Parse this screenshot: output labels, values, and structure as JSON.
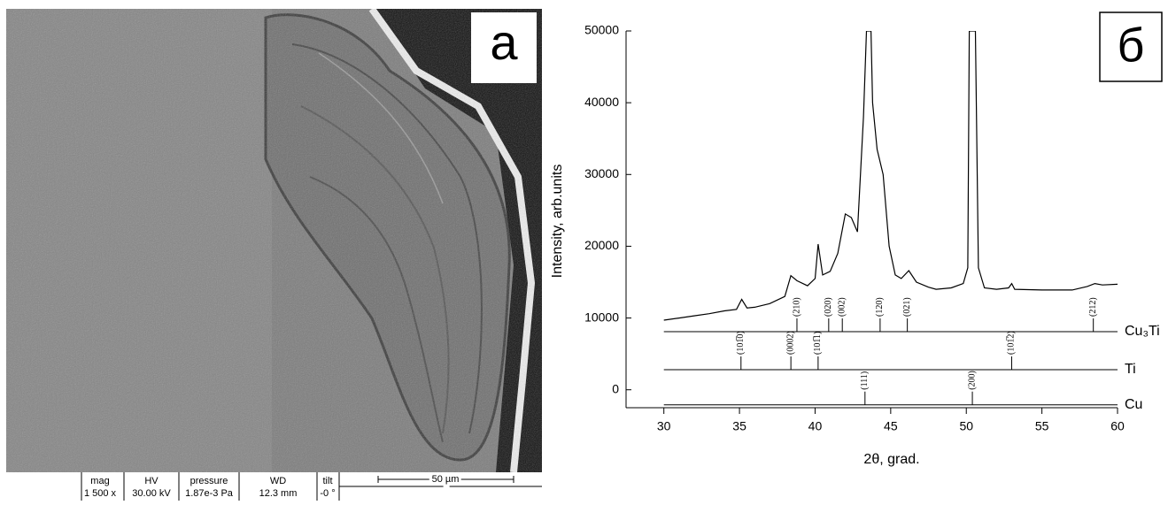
{
  "sem_image": {
    "panel_label": "а",
    "info": [
      {
        "header": "mag",
        "value": "1 500 x"
      },
      {
        "header": "HV",
        "value": "30.00 kV"
      },
      {
        "header": "pressure",
        "value": "1.87e-3 Pa"
      },
      {
        "header": "WD",
        "value": "12.3 mm"
      },
      {
        "header": "tilt",
        "value": "-0 °"
      }
    ],
    "scale_bar": "50 µm"
  },
  "chart_data": {
    "type": "line",
    "panel_label": "б",
    "xlabel": "2θ, grad.",
    "ylabel": "Intensity, arb.units",
    "color": "#000000",
    "x": [
      30,
      31,
      32,
      33,
      34,
      34.8,
      35.15,
      35.5,
      36,
      37,
      38,
      38.4,
      38.8,
      39.5,
      40.0,
      40.2,
      40.5,
      41,
      41.5,
      42,
      42.4,
      42.8,
      43.2,
      43.4,
      43.5,
      43.7,
      43.8,
      44.1,
      44.5,
      44.9,
      45.3,
      45.7,
      46.2,
      46.7,
      47.5,
      48,
      49,
      49.8,
      50.1,
      50.2,
      50.6,
      50.8,
      51.2,
      52,
      52.8,
      53,
      53.2,
      55,
      57,
      58,
      58.5,
      59,
      60
    ],
    "values": [
      9700,
      10000,
      10300,
      10600,
      11000,
      11200,
      12600,
      11400,
      11500,
      12000,
      13000,
      15900,
      15200,
      14500,
      15500,
      20300,
      16000,
      16500,
      19000,
      24500,
      24000,
      22000,
      38000,
      50000,
      50000,
      50000,
      40000,
      33500,
      30000,
      20000,
      16000,
      15500,
      16600,
      15000,
      14300,
      14000,
      14200,
      14800,
      17000,
      50000,
      50000,
      17000,
      14200,
      14000,
      14200,
      14800,
      14000,
      13900,
      13900,
      14400,
      14800,
      14600,
      14700
    ],
    "xlim": [
      27.5,
      60
    ],
    "ylim": [
      -2500,
      50000
    ],
    "xticks": [
      30,
      35,
      40,
      45,
      50,
      55,
      60
    ],
    "yticks": [
      0,
      10000,
      20000,
      30000,
      40000,
      50000
    ],
    "phases": [
      {
        "name": "Cu₃Ti",
        "baseline": 8100,
        "peaks": [
          38.8,
          40.9,
          41.8,
          44.3,
          46.1,
          58.4
        ],
        "labels": [
          "(210)",
          "(020)",
          "(002)",
          "(120)",
          "(021)",
          "(212)"
        ]
      },
      {
        "name": "Ti",
        "baseline": 2800,
        "peaks": [
          35.1,
          38.4,
          40.2,
          53.0
        ],
        "labels": [
          "(101̅0)",
          "(0002)",
          "(101̅1)",
          "(101̅2)"
        ]
      },
      {
        "name": "Cu",
        "baseline": -2100,
        "peaks": [
          43.3,
          50.4
        ],
        "labels": [
          "(111)",
          "(200)"
        ]
      }
    ]
  }
}
